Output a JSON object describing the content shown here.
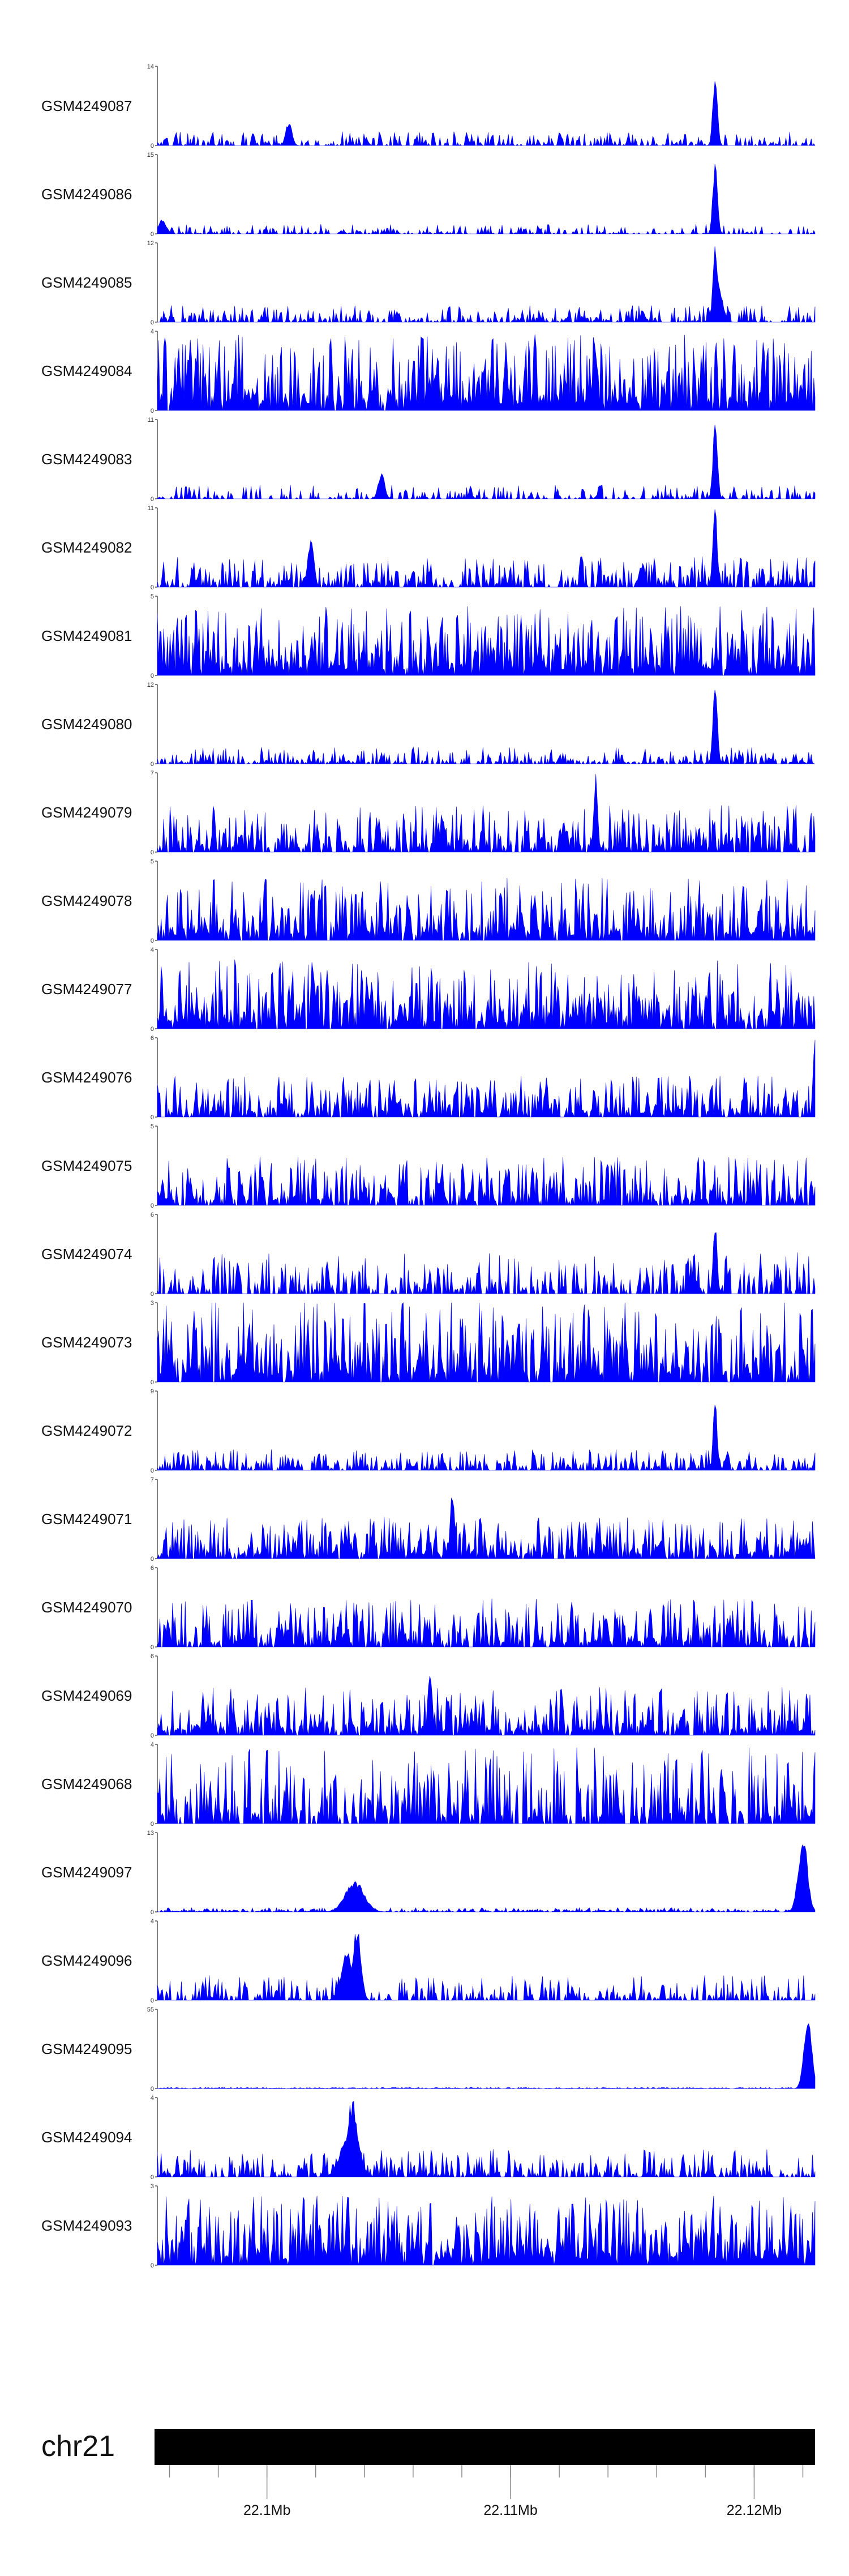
{
  "chart_data": {
    "type": "area",
    "fill_color": "#0000ff",
    "axis_color": "#000000",
    "chromosome": {
      "name": "chr21",
      "region_mb": [
        22.0955,
        22.1225
      ],
      "band_color": "#000000",
      "position_labels": [
        {
          "mb": 22.1,
          "label": "22.1Mb"
        },
        {
          "mb": 22.11,
          "label": "22.11Mb"
        },
        {
          "mb": 22.12,
          "label": "22.12Mb"
        }
      ]
    },
    "tracks": [
      {
        "name": "GSM4249087",
        "ymax": 14,
        "ymax_label": "14",
        "ymin_label": "0",
        "baseline": 0.1,
        "density": 0.55,
        "peaks": [
          [
            22.1184,
            14,
            0.1
          ],
          [
            22.1009,
            4.5,
            0.15
          ]
        ]
      },
      {
        "name": "GSM4249086",
        "ymax": 15,
        "ymax_label": "15",
        "ymin_label": "0",
        "baseline": 0.07,
        "density": 0.45,
        "peaks": [
          [
            22.1184,
            15,
            0.1
          ],
          [
            22.0957,
            3,
            0.2
          ]
        ]
      },
      {
        "name": "GSM4249085",
        "ymax": 12,
        "ymax_label": "12",
        "ymin_label": "0",
        "baseline": 0.12,
        "density": 0.55,
        "peaks": [
          [
            22.1184,
            12,
            0.1
          ],
          [
            22.1185,
            6,
            0.25
          ]
        ]
      },
      {
        "name": "GSM4249084",
        "ymax": 4,
        "ymax_label": "4",
        "ymin_label": "0",
        "baseline": 0.55,
        "density": 0.9,
        "peaks": []
      },
      {
        "name": "GSM4249083",
        "ymax": 11,
        "ymax_label": "11",
        "ymin_label": "0",
        "baseline": 0.1,
        "density": 0.4,
        "peaks": [
          [
            22.1184,
            11,
            0.1
          ],
          [
            22.1047,
            4,
            0.15
          ]
        ]
      },
      {
        "name": "GSM4249082",
        "ymax": 11,
        "ymax_label": "11",
        "ymin_label": "0",
        "baseline": 0.22,
        "density": 0.65,
        "peaks": [
          [
            22.1184,
            11,
            0.1
          ],
          [
            22.1018,
            7,
            0.15
          ]
        ]
      },
      {
        "name": "GSM4249081",
        "ymax": 5,
        "ymax_label": "5",
        "ymin_label": "0",
        "baseline": 0.5,
        "density": 0.9,
        "peaks": []
      },
      {
        "name": "GSM4249080",
        "ymax": 12,
        "ymax_label": "12",
        "ymin_label": "0",
        "baseline": 0.12,
        "density": 0.6,
        "peaks": [
          [
            22.1184,
            12,
            0.1
          ]
        ]
      },
      {
        "name": "GSM4249079",
        "ymax": 7,
        "ymax_label": "7",
        "ymin_label": "0",
        "baseline": 0.35,
        "density": 0.75,
        "peaks": [
          [
            22.1135,
            7,
            0.08
          ]
        ]
      },
      {
        "name": "GSM4249078",
        "ymax": 5,
        "ymax_label": "5",
        "ymin_label": "0",
        "baseline": 0.45,
        "density": 0.8,
        "peaks": []
      },
      {
        "name": "GSM4249077",
        "ymax": 4,
        "ymax_label": "4",
        "ymin_label": "0",
        "baseline": 0.5,
        "density": 0.85,
        "peaks": []
      },
      {
        "name": "GSM4249076",
        "ymax": 6,
        "ymax_label": "6",
        "ymin_label": "0",
        "baseline": 0.3,
        "density": 0.75,
        "peaks": [
          [
            22.1225,
            6,
            0.08
          ]
        ]
      },
      {
        "name": "GSM4249075",
        "ymax": 5,
        "ymax_label": "5",
        "ymin_label": "0",
        "baseline": 0.35,
        "density": 0.8,
        "peaks": []
      },
      {
        "name": "GSM4249074",
        "ymax": 6,
        "ymax_label": "6",
        "ymin_label": "0",
        "baseline": 0.3,
        "density": 0.55,
        "peaks": [
          [
            22.1184,
            6,
            0.08
          ]
        ]
      },
      {
        "name": "GSM4249073",
        "ymax": 3,
        "ymax_label": "3",
        "ymin_label": "0",
        "baseline": 0.6,
        "density": 0.85,
        "peaks": []
      },
      {
        "name": "GSM4249072",
        "ymax": 9,
        "ymax_label": "9",
        "ymin_label": "0",
        "baseline": 0.15,
        "density": 0.7,
        "peaks": [
          [
            22.1184,
            9,
            0.08
          ]
        ]
      },
      {
        "name": "GSM4249071",
        "ymax": 7,
        "ymax_label": "7",
        "ymin_label": "0",
        "baseline": 0.3,
        "density": 0.8,
        "peaks": [
          [
            22.1076,
            7,
            0.08
          ]
        ]
      },
      {
        "name": "GSM4249070",
        "ymax": 6,
        "ymax_label": "6",
        "ymin_label": "0",
        "baseline": 0.35,
        "density": 0.8,
        "peaks": []
      },
      {
        "name": "GSM4249069",
        "ymax": 6,
        "ymax_label": "6",
        "ymin_label": "0",
        "baseline": 0.35,
        "density": 0.8,
        "peaks": [
          [
            22.1067,
            6,
            0.08
          ]
        ]
      },
      {
        "name": "GSM4249068",
        "ymax": 4,
        "ymax_label": "4",
        "ymin_label": "0",
        "baseline": 0.55,
        "density": 0.7,
        "peaks": []
      },
      {
        "name": "GSM4249097",
        "ymax": 13,
        "ymax_label": "13",
        "ymin_label": "0",
        "baseline": 0.03,
        "density": 0.7,
        "peaks": [
          [
            22.1036,
            5.5,
            0.55
          ],
          [
            22.122,
            13,
            0.25
          ]
        ]
      },
      {
        "name": "GSM4249096",
        "ymax": 4,
        "ymax_label": "4",
        "ymin_label": "0",
        "baseline": 0.18,
        "density": 0.55,
        "peaks": [
          [
            22.1037,
            4,
            0.2
          ],
          [
            22.1033,
            2.5,
            0.35
          ]
        ]
      },
      {
        "name": "GSM4249095",
        "ymax": 55,
        "ymax_label": "55",
        "ymin_label": "0",
        "baseline": 0.01,
        "density": 0.9,
        "peaks": [
          [
            22.1222,
            55,
            0.2
          ]
        ]
      },
      {
        "name": "GSM4249094",
        "ymax": 4,
        "ymax_label": "4",
        "ymin_label": "0",
        "baseline": 0.2,
        "density": 0.6,
        "peaks": [
          [
            22.1035,
            4,
            0.3
          ],
          [
            22.1034,
            2.5,
            0.5
          ]
        ]
      },
      {
        "name": "GSM4249093",
        "ymax": 3,
        "ymax_label": "3",
        "ymin_label": "0",
        "baseline": 0.5,
        "density": 0.9,
        "peaks": []
      }
    ]
  }
}
